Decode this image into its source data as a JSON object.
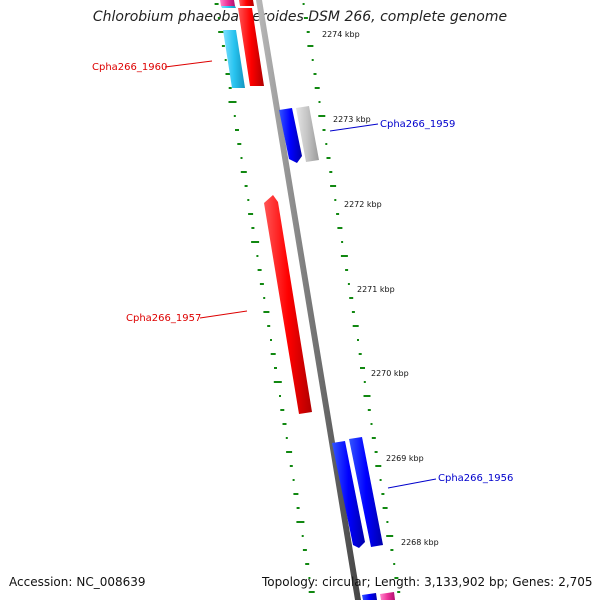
{
  "title": "Chlorobium phaeobacteroides DSM 266, complete genome",
  "footer": {
    "accession_label": "Accession:",
    "accession_value": "NC_008639",
    "topology_label": "Topology:",
    "topology_value": "circular;",
    "length_label": "Length:",
    "length_value": "3,133,902 bp;",
    "genes_label": "Genes:",
    "genes_value": "2,705"
  },
  "ticks": [
    {
      "label": "2274 kbp"
    },
    {
      "label": "2273 kbp"
    },
    {
      "label": "2272 kbp"
    },
    {
      "label": "2271 kbp"
    },
    {
      "label": "2270 kbp"
    },
    {
      "label": "2269 kbp"
    },
    {
      "label": "2268 kbp"
    }
  ],
  "gene_labels": [
    {
      "name": "Cpha266_1960",
      "color": "#dd0000"
    },
    {
      "name": "Cpha266_1959",
      "color": "#0000cc"
    },
    {
      "name": "Cpha266_1957",
      "color": "#dd0000"
    },
    {
      "name": "Cpha266_1956",
      "color": "#0000cc"
    }
  ],
  "colors": {
    "forward_strand": "#ff0000",
    "reverse_strand": "#0000ff",
    "pseudo": "#c0c0c0",
    "cyan_feature": "#29c4f0",
    "pink_feature": "#ee3399",
    "backbone": "#7a7a7a",
    "gc_tick": "#118811"
  }
}
